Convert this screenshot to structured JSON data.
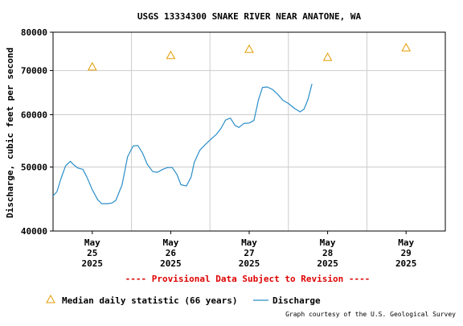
{
  "chart_data": {
    "type": "line",
    "title": "USGS 13334300 SNAKE RIVER NEAR ANATONE, WA",
    "ylabel": "Discharge, cubic feet per second",
    "y_scale": "log",
    "ylim": [
      40000,
      80000
    ],
    "y_ticks": [
      {
        "value": 40000,
        "label": "40000"
      },
      {
        "value": 50000,
        "label": "50000"
      },
      {
        "value": 60000,
        "label": "60000"
      },
      {
        "value": 70000,
        "label": "70000"
      },
      {
        "value": 80000,
        "label": "80000"
      }
    ],
    "x_range_days": [
      24.5,
      29.5
    ],
    "x_ticks": [
      {
        "pos": 25,
        "month": "May",
        "day": "25",
        "year": "2025"
      },
      {
        "pos": 26,
        "month": "May",
        "day": "26",
        "year": "2025"
      },
      {
        "pos": 27,
        "month": "May",
        "day": "27",
        "year": "2025"
      },
      {
        "pos": 28,
        "month": "May",
        "day": "28",
        "year": "2025"
      },
      {
        "pos": 29,
        "month": "May",
        "day": "29",
        "year": "2025"
      }
    ],
    "grid": true,
    "series": [
      {
        "name": "Discharge",
        "color": "#2a8ec8",
        "points": [
          [
            24.5,
            45200
          ],
          [
            24.55,
            45900
          ],
          [
            24.6,
            48000
          ],
          [
            24.66,
            50200
          ],
          [
            24.72,
            51000
          ],
          [
            24.77,
            50300
          ],
          [
            24.82,
            49800
          ],
          [
            24.88,
            49600
          ],
          [
            24.93,
            48300
          ],
          [
            25.0,
            46200
          ],
          [
            25.07,
            44600
          ],
          [
            25.12,
            44000
          ],
          [
            25.2,
            44000
          ],
          [
            25.25,
            44100
          ],
          [
            25.3,
            44500
          ],
          [
            25.38,
            47000
          ],
          [
            25.45,
            51800
          ],
          [
            25.52,
            53800
          ],
          [
            25.58,
            53900
          ],
          [
            25.64,
            52500
          ],
          [
            25.7,
            50500
          ],
          [
            25.77,
            49200
          ],
          [
            25.83,
            49100
          ],
          [
            25.9,
            49600
          ],
          [
            25.96,
            49900
          ],
          [
            26.02,
            49900
          ],
          [
            26.08,
            48700
          ],
          [
            26.13,
            47000
          ],
          [
            26.2,
            46800
          ],
          [
            26.26,
            48300
          ],
          [
            26.3,
            50800
          ],
          [
            26.37,
            53000
          ],
          [
            26.45,
            54200
          ],
          [
            26.52,
            55200
          ],
          [
            26.58,
            56000
          ],
          [
            26.64,
            57200
          ],
          [
            26.7,
            58900
          ],
          [
            26.76,
            59300
          ],
          [
            26.82,
            57800
          ],
          [
            26.87,
            57400
          ],
          [
            26.93,
            58200
          ],
          [
            27.0,
            58300
          ],
          [
            27.06,
            58800
          ],
          [
            27.12,
            63300
          ],
          [
            27.17,
            66000
          ],
          [
            27.23,
            66100
          ],
          [
            27.3,
            65500
          ],
          [
            27.37,
            64300
          ],
          [
            27.43,
            63100
          ],
          [
            27.5,
            62400
          ],
          [
            27.58,
            61300
          ],
          [
            27.65,
            60600
          ],
          [
            27.7,
            61200
          ],
          [
            27.75,
            63300
          ],
          [
            27.8,
            66800
          ]
        ]
      },
      {
        "name": "Median daily statistic (66 years)",
        "color": "#e39b00",
        "points": [
          [
            25,
            70900
          ],
          [
            26,
            73800
          ],
          [
            27,
            75400
          ],
          [
            28,
            73300
          ],
          [
            29,
            75800
          ]
        ]
      }
    ],
    "legend_placement": "bottom",
    "legend": [
      {
        "label": "Median daily statistic (66 years)",
        "symbol": "triangle"
      },
      {
        "label": "Discharge",
        "symbol": "line"
      }
    ],
    "annotations": {
      "provisional": "---- Provisional Data Subject to Revision ----",
      "credit": "Graph courtesy of the U.S. Geological Survey"
    }
  },
  "colors": {
    "grid": "#cccccc",
    "axis": "#000000",
    "provisional": "#dd0000",
    "discharge": "#2a8ec8",
    "median": "#e39b00",
    "text": "#000000"
  }
}
